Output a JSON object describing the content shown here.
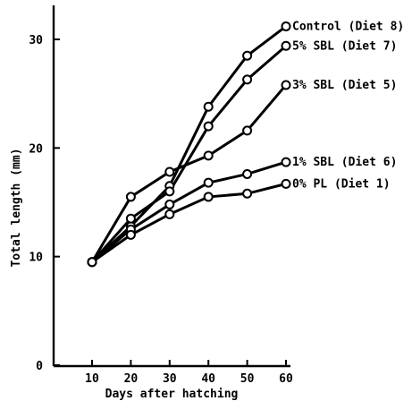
{
  "chart_data": {
    "type": "line",
    "title": "",
    "xlabel": "Days after hatching",
    "ylabel": "Total length (mm)",
    "xlim": [
      5,
      60
    ],
    "ylim": [
      0,
      33
    ],
    "x_ticks": [
      10,
      20,
      30,
      40,
      50,
      60
    ],
    "y_ticks": [
      0,
      10,
      20,
      30
    ],
    "grid": false,
    "legend": "labels at line ends (right)",
    "x": [
      10,
      20,
      30,
      40,
      50,
      60
    ],
    "series": [
      {
        "name": "Control (Diet 8)",
        "values": [
          9.5,
          12.8,
          16.5,
          23.8,
          28.5,
          31.2
        ]
      },
      {
        "name": "5% SBL (Diet 7)",
        "values": [
          9.5,
          13.5,
          16.0,
          22.0,
          26.3,
          29.4
        ]
      },
      {
        "name": "3% SBL (Diet 5)",
        "values": [
          9.5,
          15.5,
          17.8,
          19.3,
          21.6,
          25.8
        ]
      },
      {
        "name": "1% SBL (Diet 6)",
        "values": [
          9.5,
          12.5,
          14.8,
          16.8,
          17.6,
          18.7
        ]
      },
      {
        "name": "0% PL (Diet 1)",
        "values": [
          9.5,
          12.0,
          13.9,
          15.5,
          15.8,
          16.7
        ]
      }
    ]
  }
}
